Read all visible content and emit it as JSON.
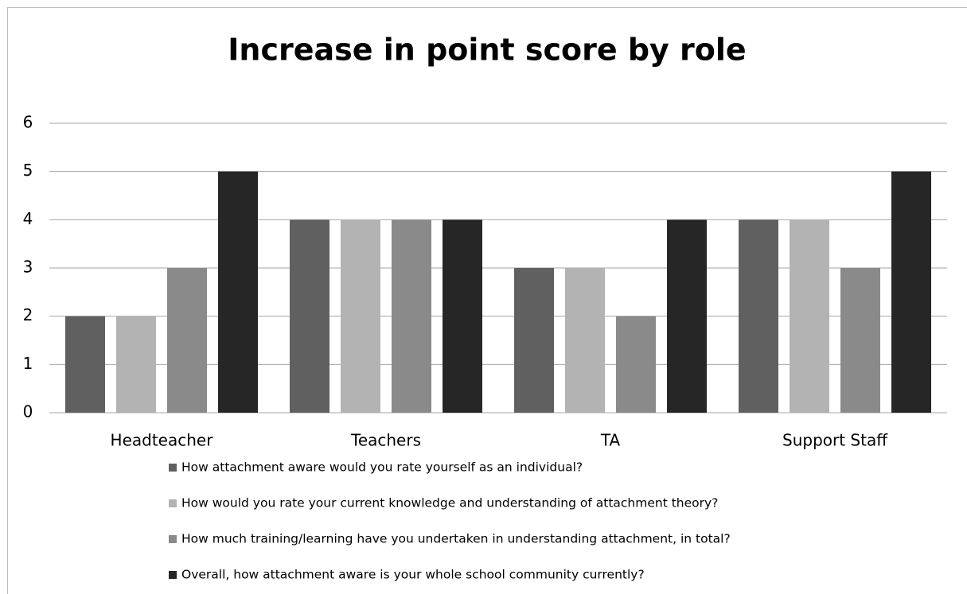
{
  "chart_data": {
    "type": "bar",
    "title": "Increase in point score by role",
    "categories": [
      "Headteacher",
      "Teachers",
      "TA",
      "Support Staff"
    ],
    "series": [
      {
        "name": "How attachment aware would you rate yourself as an individual?",
        "color": "#606060",
        "values": [
          2,
          4,
          3,
          4
        ]
      },
      {
        "name": "How would you rate your current knowledge and understanding of attachment theory?",
        "color": "#b3b3b3",
        "values": [
          2,
          4,
          3,
          4
        ]
      },
      {
        "name": "How much training/learning have you undertaken in understanding attachment, in total?",
        "color": "#8a8a8a",
        "values": [
          3,
          4,
          2,
          3
        ]
      },
      {
        "name": "Overall, how attachment aware is your whole school community currently?",
        "color": "#262626",
        "values": [
          5,
          4,
          4,
          5
        ]
      }
    ],
    "ylim": [
      0,
      6
    ],
    "yticks": [
      0,
      1,
      2,
      3,
      4,
      5,
      6
    ],
    "grid": true,
    "legend": "bottom"
  }
}
